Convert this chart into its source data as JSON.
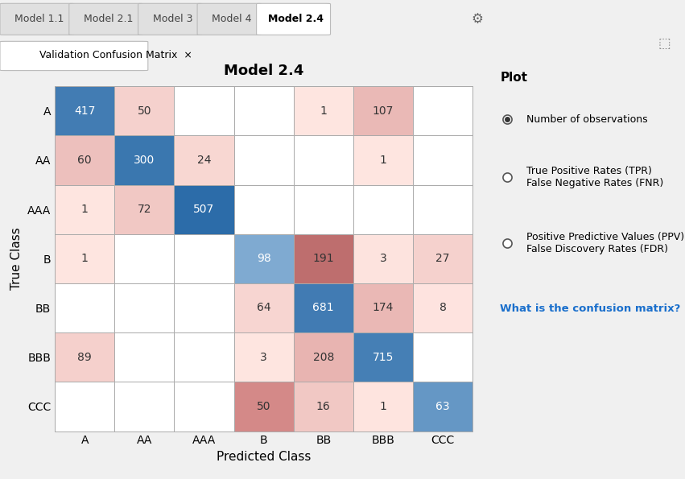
{
  "title": "Model 2.4",
  "classes": [
    "A",
    "AA",
    "AAA",
    "B",
    "BB",
    "BBB",
    "CCC"
  ],
  "matrix": [
    [
      417,
      50,
      0,
      0,
      1,
      107,
      0
    ],
    [
      60,
      300,
      24,
      0,
      0,
      1,
      0
    ],
    [
      1,
      72,
      507,
      0,
      0,
      0,
      0
    ],
    [
      1,
      0,
      0,
      98,
      191,
      3,
      27
    ],
    [
      0,
      0,
      0,
      64,
      681,
      174,
      8
    ],
    [
      89,
      0,
      0,
      3,
      208,
      715,
      0
    ],
    [
      0,
      0,
      0,
      50,
      16,
      1,
      63
    ]
  ],
  "xlabel": "Predicted Class",
  "ylabel": "True Class",
  "bg_color": "#f0f0f0",
  "panel_bg": "#f0f0f0",
  "cell_border": "#aaaaaa",
  "diag_blue_dark": "#2060a0",
  "diag_blue_med": "#4d8fc4",
  "diag_blue_light": "#aacce8",
  "off_pink_strong": "#f0a090",
  "off_pink_med": "#f5c0b0",
  "off_pink_light": "#fce8e0",
  "zero_color": "#ffffff",
  "title_fontsize": 13,
  "axis_label_fontsize": 11,
  "tick_fontsize": 10,
  "cell_fontsize": 10,
  "tab_labels": [
    "Model 1.1",
    "Model 2.1",
    "Model 3",
    "Model 4",
    "Model 2.4"
  ],
  "active_tab": 4,
  "subtab_label": "Validation Confusion Matrix",
  "plot_label": "Plot",
  "radio_options": [
    "Number of observations",
    "True Positive Rates (TPR)\nFalse Negative Rates (FNR)",
    "Positive Predictive Values (PPV)\nFalse Discovery Rates (FDR)"
  ],
  "link_text": "What is the confusion matrix?",
  "link_color": "#1a6fcc"
}
